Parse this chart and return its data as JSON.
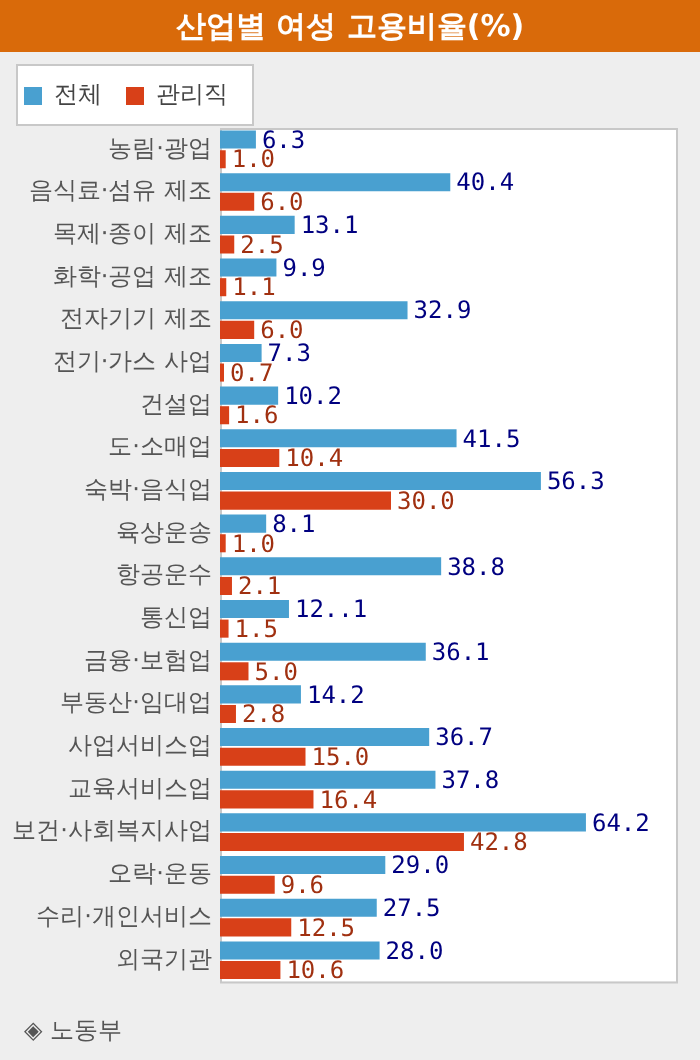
{
  "chart_data": {
    "type": "bar",
    "orientation": "horizontal",
    "title": "산업별 여성 고용비율(%)",
    "categories": [
      "농림·광업",
      "음식료·섬유 제조",
      "목제·종이 제조",
      "화학·공업 제조",
      "전자기기 제조",
      "전기·가스 사업",
      "건설업",
      "도·소매업",
      "숙박·음식업",
      "육상운송",
      "항공운수",
      "통신업",
      "금융·보험업",
      "부동산·임대업",
      "사업서비스업",
      "교육서비스업",
      "보건·사회복지사업",
      "오락·운동",
      "수리·개인서비스",
      "외국기관"
    ],
    "series": [
      {
        "name": "전체",
        "color": "#49a0d0",
        "values": [
          6.3,
          40.4,
          13.1,
          9.9,
          32.9,
          7.3,
          10.2,
          41.5,
          56.3,
          8.1,
          38.8,
          12.1,
          36.1,
          14.2,
          36.7,
          37.8,
          64.2,
          29.0,
          27.5,
          28.0
        ],
        "value_labels": [
          "6.3",
          "40.4",
          "13.1",
          "9.9",
          "32.9",
          "7.3",
          "10.2",
          "41.5",
          "56.3",
          "8.1",
          "38.8",
          "12..1",
          "36.1",
          "14.2",
          "36.7",
          "37.8",
          "64.2",
          "29.0",
          "27.5",
          "28.0"
        ]
      },
      {
        "name": "관리직",
        "color": "#d84018",
        "values": [
          1.0,
          6.0,
          2.5,
          1.1,
          6.0,
          0.7,
          1.6,
          10.4,
          30.0,
          1.0,
          2.1,
          1.5,
          5.0,
          2.8,
          15.0,
          16.4,
          42.8,
          9.6,
          12.5,
          10.6
        ],
        "value_labels": [
          "1.0",
          "6.0",
          "2.5",
          "1.1",
          "6.0",
          "0.7",
          "1.6",
          "10.4",
          "30.0",
          "1.0",
          "2.1",
          "1.5",
          "5.0",
          "2.8",
          "15.0",
          "16.4",
          "42.8",
          "9.6",
          "12.5",
          "10.6"
        ]
      }
    ],
    "legend": "top left",
    "tick_labels": "y",
    "annotations": [
      "◈ 노동부"
    ]
  }
}
